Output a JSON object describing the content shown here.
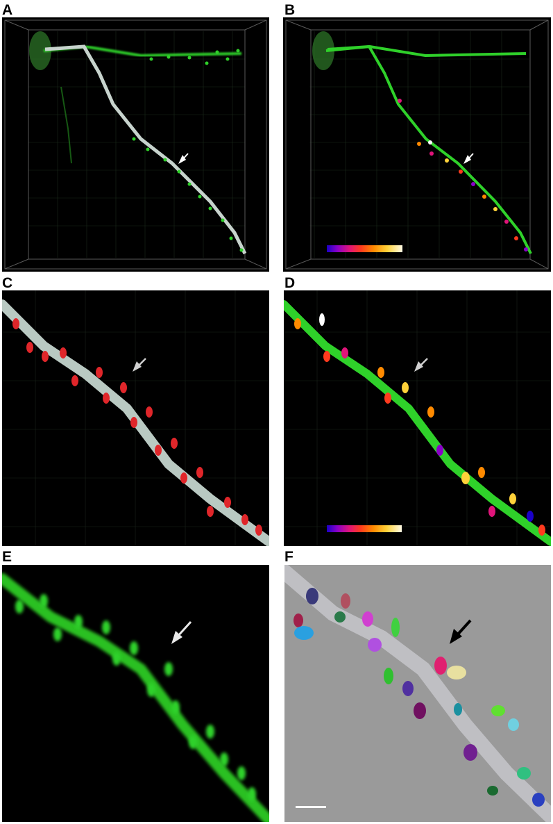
{
  "figure": {
    "panels": [
      {
        "label": "A",
        "description_icon": "dendrite-3d-surface-render"
      },
      {
        "label": "B",
        "description_icon": "dendrite-spine-heatmap-render"
      },
      {
        "label": "C",
        "description_icon": "dendrite-closeup-red-spines"
      },
      {
        "label": "D",
        "description_icon": "dendrite-closeup-heatmap-spines"
      },
      {
        "label": "E",
        "description_icon": "dendrite-raw-fluorescence"
      },
      {
        "label": "F",
        "description_icon": "dendrite-segmented-spines"
      }
    ]
  },
  "colors": {
    "background": "#000000",
    "dendrite_green": "#2fd12a",
    "dendrite_gray": "#b9c9c2",
    "spine_red": "#e0262a",
    "arrow_white": "#ffffff",
    "arrow_black": "#000000",
    "panel_f_background": "#9a9a9a"
  }
}
